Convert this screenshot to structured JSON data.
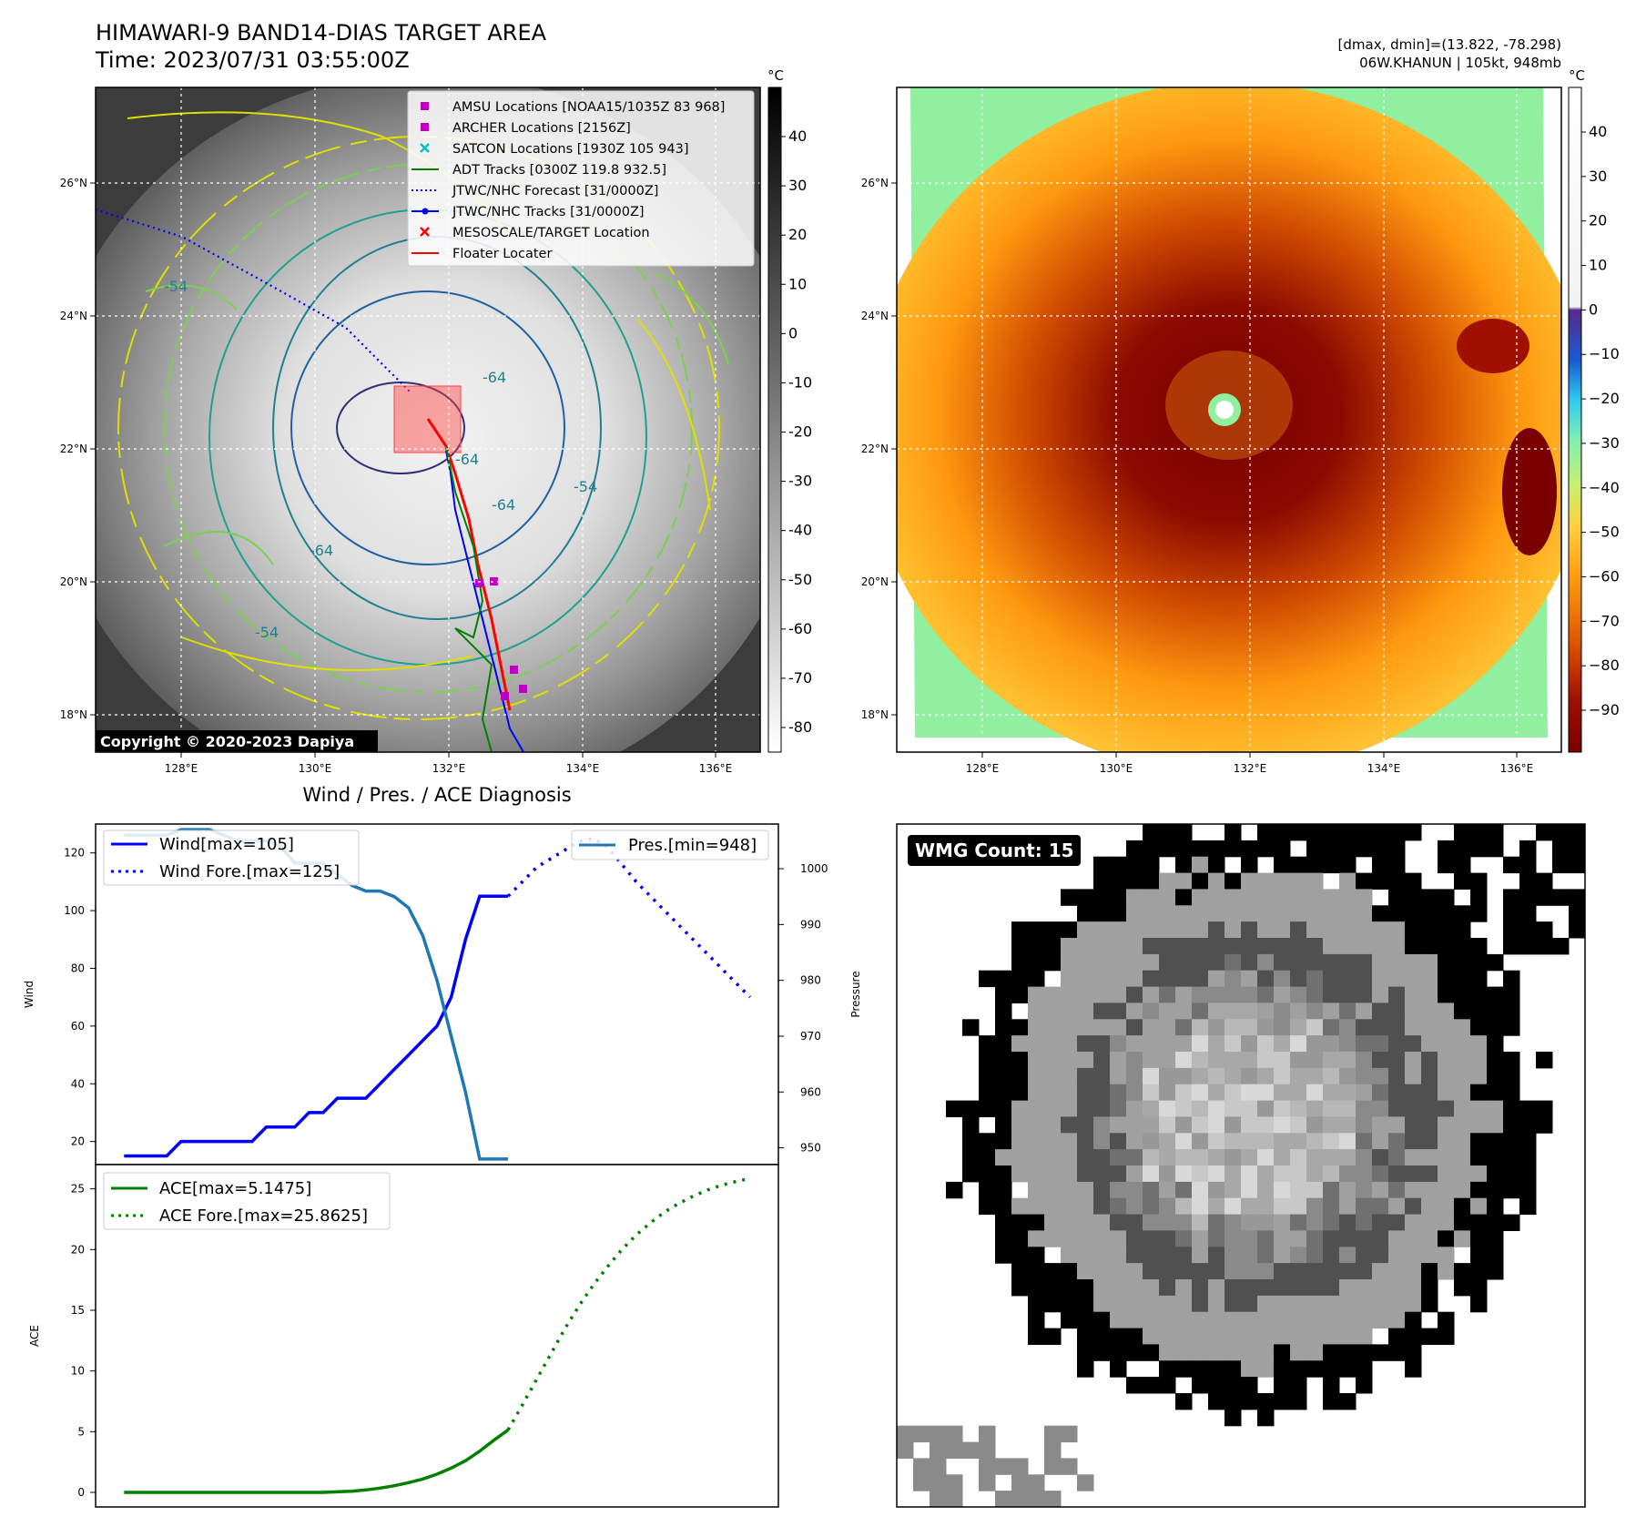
{
  "header": {
    "title": "HIMAWARI-9 BAND14-DIAS TARGET AREA",
    "time": "Time: 2023/07/31 03:55:00Z",
    "dminmax": "[dmax, dmin]=(13.822, -78.298)",
    "storm": "06W.KHANUN | 105kt, 948mb"
  },
  "map_common": {
    "lon_ticks": [
      "128°E",
      "130°E",
      "132°E",
      "134°E",
      "136°E"
    ],
    "lat_ticks": [
      "26°N",
      "24°N",
      "22°N",
      "20°N",
      "18°N"
    ],
    "copyright": "Copyright © 2020-2023 Dapiya"
  },
  "colorbar_ir": {
    "unit": "°C",
    "ticks": [
      "40",
      "30",
      "20",
      "10",
      "0",
      "-10",
      "-20",
      "-30",
      "-40",
      "-50",
      "-60",
      "-70",
      "-80"
    ]
  },
  "colorbar_rgb": {
    "unit": "°C",
    "ticks": [
      "40",
      "30",
      "20",
      "10",
      "0",
      "−10",
      "−20",
      "−30",
      "−40",
      "−50",
      "−60",
      "−70",
      "−80",
      "−90"
    ]
  },
  "legend_map": [
    {
      "label": "AMSU Locations [NOAA15/1035Z 83 968]",
      "icon": "square-marker",
      "color": "#c000c0"
    },
    {
      "label": "ARCHER Locations [2156Z]",
      "icon": "square-marker",
      "color": "#c000c0"
    },
    {
      "label": "SATCON Locations [1930Z 105 943]",
      "icon": "x-marker",
      "color": "#00c0c0"
    },
    {
      "label": "ADT Tracks [0300Z 119.8 932.5]",
      "icon": "line",
      "color": "#008000"
    },
    {
      "label": "JTWC/NHC Forecast [31/0000Z]",
      "icon": "dotted-line",
      "color": "#0000ff"
    },
    {
      "label": "JTWC/NHC Tracks [31/0000Z]",
      "icon": "line-dot",
      "color": "#0000ff"
    },
    {
      "label": "MESOSCALE/TARGET Location",
      "icon": "x-marker",
      "color": "#ff0000"
    },
    {
      "label": "Floater Locater",
      "icon": "line",
      "color": "#ff0000"
    }
  ],
  "contour_labels": [
    "-54",
    "-64",
    "-64",
    "-64",
    "-54",
    "-54",
    "-64"
  ],
  "diagnosis": {
    "title": "Wind / Pres. / ACE Diagnosis",
    "wind_ylabel": "Wind",
    "pres_ylabel": "Pressure",
    "ace_ylabel": "ACE",
    "legend_wind": [
      "Wind[max=105]",
      "Wind Fore.[max=125]"
    ],
    "legend_pres": [
      "Pres.[min=948]"
    ],
    "legend_ace": [
      "ACE[max=5.1475]",
      "ACE Fore.[max=25.8625]"
    ],
    "colors": {
      "wind": "#0000ff",
      "pres": "#1f77b4",
      "ace": "#008000"
    }
  },
  "wmg": {
    "label": "WMG Count: 15"
  },
  "chart_data": [
    {
      "type": "line",
      "name": "wind",
      "ylim": [
        12,
        130
      ],
      "yticks": [
        20,
        40,
        60,
        80,
        100,
        120
      ],
      "xlim": [
        -2,
        46
      ],
      "series": [
        {
          "name": "Wind[max=105]",
          "style": "solid",
          "x": [
            0,
            1,
            2,
            3,
            4,
            5,
            6,
            7,
            8,
            9,
            10,
            11,
            12,
            13,
            14,
            15,
            16,
            17,
            18,
            19,
            20,
            21,
            22,
            23,
            24,
            25,
            26,
            27
          ],
          "values": [
            15,
            15,
            15,
            15,
            20,
            20,
            20,
            20,
            20,
            20,
            25,
            25,
            25,
            30,
            30,
            35,
            35,
            35,
            40,
            45,
            50,
            55,
            60,
            70,
            90,
            105,
            105,
            105
          ]
        },
        {
          "name": "Wind Fore.[max=125]",
          "style": "dotted",
          "x": [
            27,
            28,
            29,
            30,
            31,
            32,
            33,
            34,
            35,
            36,
            37,
            38,
            39,
            40,
            41,
            42,
            43,
            44
          ],
          "values": [
            105,
            110,
            115,
            118,
            121,
            124,
            125,
            122,
            116,
            110,
            105,
            100,
            95,
            90,
            85,
            80,
            75,
            70
          ]
        }
      ]
    },
    {
      "type": "line",
      "name": "pressure",
      "ylim": [
        947,
        1008
      ],
      "yticks": [
        950,
        960,
        970,
        980,
        990,
        1000
      ],
      "xlim": [
        -2,
        46
      ],
      "series": [
        {
          "name": "Pres.[min=948]",
          "style": "solid",
          "x": [
            0,
            1,
            2,
            3,
            4,
            5,
            6,
            7,
            8,
            9,
            10,
            11,
            12,
            13,
            14,
            15,
            16,
            17,
            18,
            19,
            20,
            21,
            22,
            23,
            24,
            25,
            26,
            27
          ],
          "values": [
            1006,
            1006,
            1006,
            1006,
            1007,
            1007,
            1007,
            1006,
            1005,
            1005,
            1005,
            1004,
            1001,
            1001,
            1001,
            999,
            997,
            996,
            996,
            995,
            993,
            988,
            980,
            970,
            960,
            948,
            948,
            948
          ]
        }
      ]
    },
    {
      "type": "line",
      "name": "ace",
      "ylim": [
        -1.2,
        27
      ],
      "yticks": [
        0,
        5,
        10,
        15,
        20,
        25
      ],
      "xlim": [
        -2,
        46
      ],
      "series": [
        {
          "name": "ACE[max=5.1475]",
          "style": "solid",
          "x": [
            0,
            4,
            8,
            12,
            14,
            16,
            17,
            18,
            19,
            20,
            21,
            22,
            23,
            24,
            25,
            26,
            27
          ],
          "values": [
            0,
            0,
            0,
            0,
            0,
            0.1,
            0.2,
            0.35,
            0.55,
            0.8,
            1.1,
            1.5,
            2.0,
            2.6,
            3.4,
            4.3,
            5.1475
          ]
        },
        {
          "name": "ACE Fore.[max=25.8625]",
          "style": "dotted",
          "x": [
            27,
            28,
            29,
            30,
            31,
            32,
            33,
            34,
            35,
            36,
            37,
            38,
            39,
            40,
            41,
            42,
            43,
            44
          ],
          "values": [
            5.1475,
            7.2,
            9.3,
            11.4,
            13.5,
            15.4,
            17.1,
            18.6,
            20.0,
            21.2,
            22.2,
            23.1,
            23.8,
            24.4,
            24.9,
            25.3,
            25.6,
            25.8625
          ]
        }
      ]
    }
  ]
}
